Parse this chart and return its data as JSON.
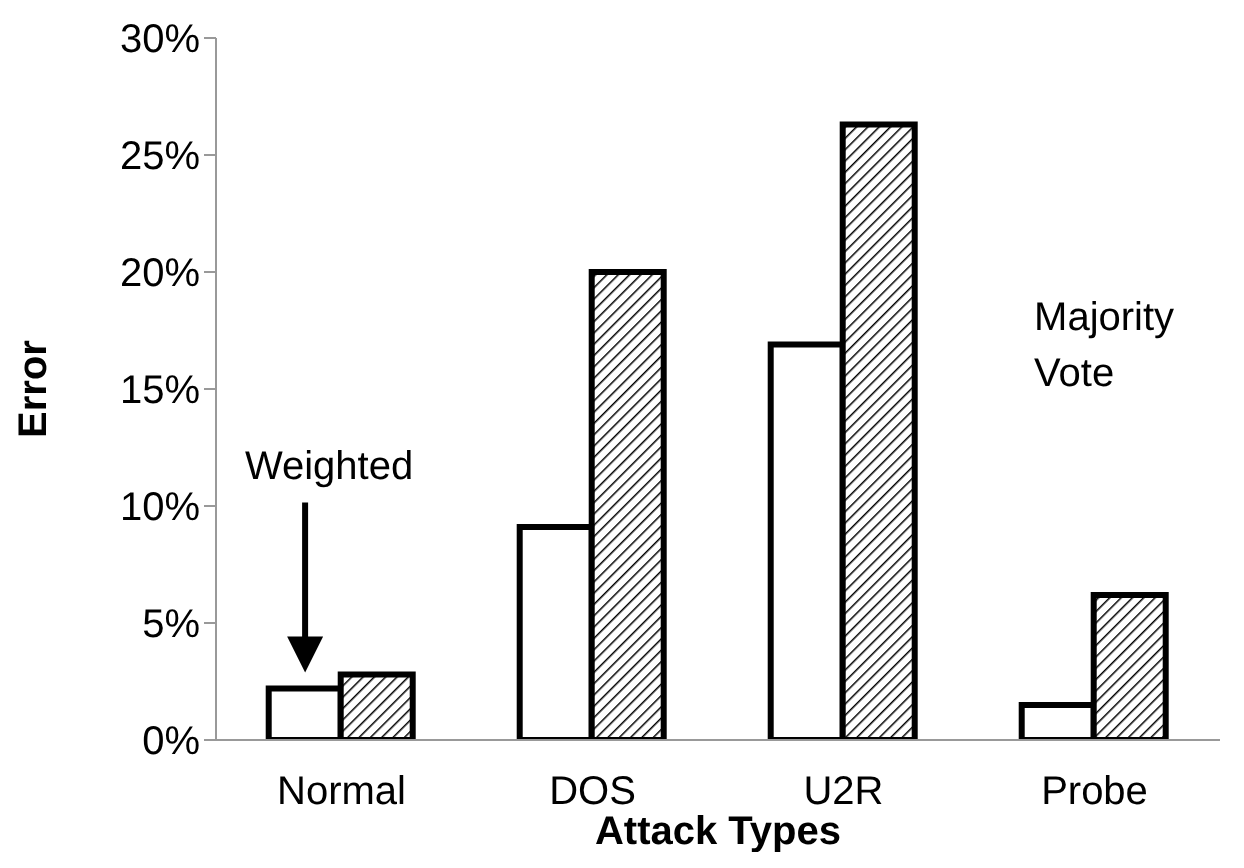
{
  "chart_data": {
    "type": "bar",
    "xlabel": "Attack Types",
    "ylabel": "Error",
    "categories": [
      "Normal",
      "DOS",
      "U2R",
      "Probe"
    ],
    "series": [
      {
        "name": "Weighted",
        "color": "#ffffff",
        "values": [
          2.2,
          9.1,
          16.9,
          1.5
        ]
      },
      {
        "name": "Majority Vote",
        "color": "#000000",
        "values": [
          2.8,
          20.0,
          26.3,
          6.2
        ]
      }
    ],
    "ylim": [
      0,
      30
    ],
    "yticks": [
      {
        "value": 0,
        "label": "0%"
      },
      {
        "value": 5,
        "label": "5%"
      },
      {
        "value": 10,
        "label": "10%"
      },
      {
        "value": 15,
        "label": "15%"
      },
      {
        "value": 20,
        "label": "20%"
      },
      {
        "value": 25,
        "label": "25%"
      },
      {
        "value": 30,
        "label": "30%"
      }
    ],
    "grid": false,
    "legend": false
  }
}
